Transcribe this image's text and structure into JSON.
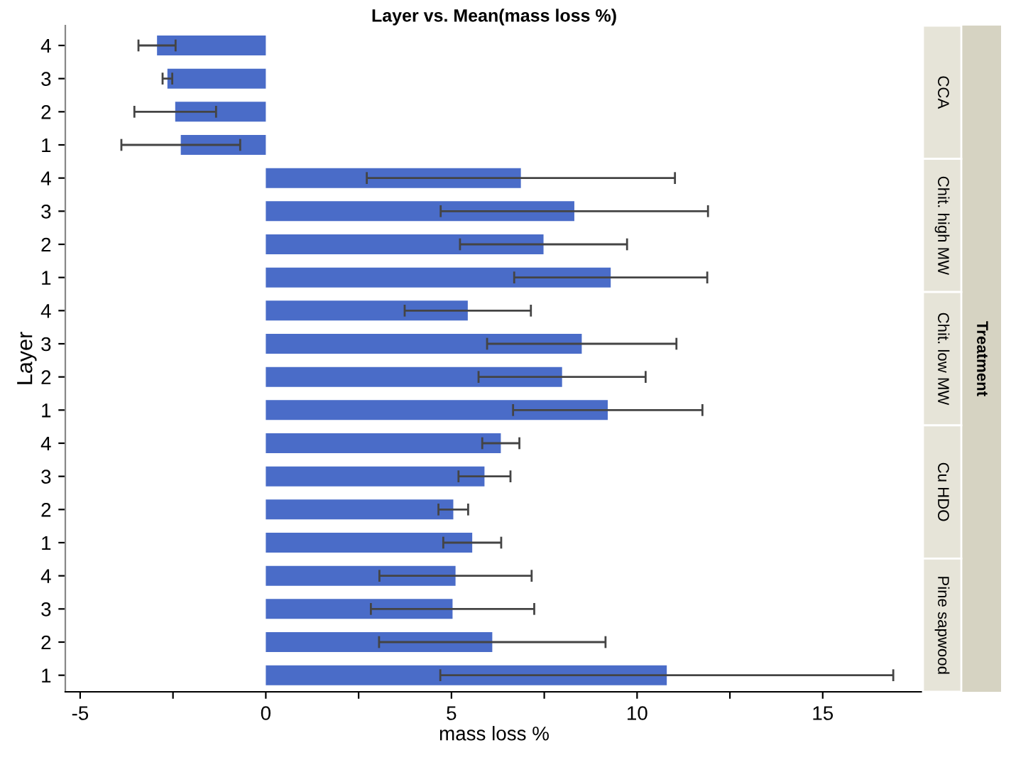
{
  "chart_data": {
    "type": "bar",
    "orientation": "horizontal",
    "title": "Layer vs. Mean(mass loss %)",
    "xlabel": "mass loss %",
    "ylabel": "Layer",
    "legend_title": "Treatment",
    "annotations": [
      "CCA",
      "Chit. high MW",
      "Chit. low MW",
      "Cu HDO",
      "Pine sapwood"
    ],
    "categories": [
      "4",
      "3",
      "2",
      "1",
      "4",
      "3",
      "2",
      "1",
      "4",
      "3",
      "2",
      "1",
      "4",
      "3",
      "2",
      "1",
      "4",
      "3",
      "2",
      "1"
    ],
    "values": [
      -2.93,
      -2.65,
      -2.44,
      -2.29,
      6.87,
      8.31,
      7.48,
      9.29,
      5.44,
      8.51,
      7.98,
      9.21,
      6.33,
      5.89,
      5.05,
      5.56,
      5.11,
      5.03,
      6.1,
      10.8
    ],
    "errors": [
      0.5,
      0.13,
      1.1,
      1.6,
      4.15,
      3.6,
      2.25,
      2.6,
      1.7,
      2.55,
      2.25,
      2.55,
      0.5,
      0.7,
      0.4,
      0.78,
      2.05,
      2.2,
      3.05,
      6.1
    ],
    "color": "#4a6cc8",
    "xlim": [
      -5.4,
      17.7
    ],
    "xticks": [
      -5,
      {
        "value": -2.5,
        "label": null
      },
      0,
      {
        "value": 2.5,
        "label": null
      },
      5,
      {
        "value": 7.5,
        "label": null
      },
      10,
      {
        "value": 12.5,
        "label": null
      },
      15
    ],
    "grid": false
  }
}
